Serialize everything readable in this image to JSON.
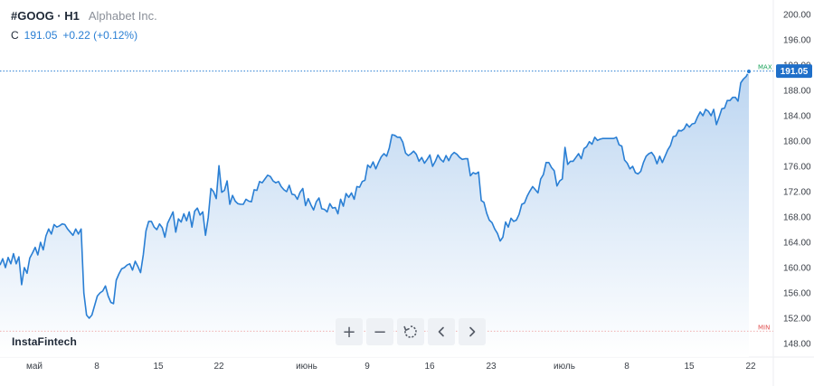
{
  "header": {
    "symbol": "#GOOG · H1",
    "company": "Alphabet Inc.",
    "price_label": "C",
    "price_value": "191.05",
    "price_change": "+0.22 (+0.12%)"
  },
  "watermark": "InstaFintech",
  "toolbar": {
    "zoom_in": "+",
    "zoom_out": "−",
    "reset_icon": "reset-icon",
    "back_icon": "chevron-left-icon",
    "forward_icon": "chevron-right-icon"
  },
  "colors": {
    "line": "#2a7fd4",
    "fill_top": "#b8d3f0",
    "max_marker": "#1aa35a",
    "min_marker": "#e05050",
    "price_tag": "#1f6fc9"
  },
  "markers": {
    "max_label": "MAX",
    "min_label": "MIN",
    "last_price": "191.05"
  },
  "chart_data": {
    "type": "area",
    "title": "#GOOG · H1",
    "y_ticks": [
      "200.00",
      "196.00",
      "192.00",
      "188.00",
      "184.00",
      "180.00",
      "176.00",
      "172.00",
      "168.00",
      "164.00",
      "160.00",
      "156.00",
      "152.00",
      "148.00"
    ],
    "ylim": [
      146.2,
      201.4
    ],
    "x_ticks": [
      "май",
      "8",
      "15",
      "22",
      "июнь",
      "9",
      "16",
      "23",
      "июль",
      "8",
      "15",
      "22"
    ],
    "max_value": 191.05,
    "min_value": 149.95,
    "series": [
      {
        "values": [
          160.4,
          161.4,
          160.0,
          161.6,
          160.6,
          162.2,
          160.6,
          161.7,
          157.3,
          160.0,
          159.1,
          161.5,
          162.3,
          163.2,
          162.0,
          164.0,
          162.8,
          165.0,
          166.1,
          165.3,
          166.8,
          166.4,
          166.6,
          166.9,
          166.8,
          166.1,
          165.6,
          165.1,
          166.1,
          165.3,
          166.1,
          156.0,
          152.5,
          152.0,
          152.5,
          154.0,
          155.5,
          156.0,
          156.3,
          157.1,
          155.5,
          154.5,
          154.3,
          158.0,
          159.0,
          159.8,
          160.0,
          160.4,
          160.6,
          159.6,
          161.0,
          160.2,
          159.2,
          162.0,
          165.8,
          167.3,
          167.3,
          166.4,
          166.0,
          166.9,
          166.3,
          164.8,
          167.0,
          167.9,
          168.8,
          165.6,
          167.7,
          167.2,
          168.5,
          167.4,
          168.8,
          166.4,
          168.9,
          169.4,
          168.3,
          168.8,
          165.1,
          167.9,
          172.5,
          172.0,
          170.9,
          176.1,
          171.9,
          172.2,
          173.7,
          170.0,
          171.4,
          170.5,
          170.1,
          170.0,
          170.0,
          170.8,
          170.5,
          170.4,
          172.3,
          172.2,
          173.6,
          173.4,
          174.0,
          174.6,
          174.4,
          173.7,
          173.4,
          173.6,
          172.8,
          172.3,
          172.0,
          173.0,
          171.6,
          171.5,
          170.8,
          171.9,
          172.5,
          169.8,
          170.9,
          169.9,
          169.1,
          170.4,
          171.0,
          169.3,
          169.2,
          168.8,
          170.1,
          169.4,
          169.5,
          168.5,
          170.8,
          169.7,
          171.7,
          171.1,
          171.8,
          170.8,
          172.8,
          172.7,
          173.6,
          173.8,
          176.2,
          175.8,
          176.7,
          175.6,
          176.6,
          177.5,
          178.0,
          177.6,
          178.9,
          181.0,
          180.9,
          180.6,
          180.6,
          179.8,
          178.1,
          177.7,
          178.0,
          178.4,
          177.9,
          176.8,
          177.4,
          176.5,
          177.1,
          177.8,
          176.0,
          176.8,
          177.8,
          177.1,
          176.7,
          177.7,
          176.9,
          177.8,
          178.2,
          177.9,
          177.4,
          177.1,
          177.2,
          177.2,
          174.5,
          175.0,
          174.8,
          175.1,
          170.6,
          170.3,
          168.6,
          167.5,
          167.1,
          166.1,
          165.4,
          164.2,
          164.8,
          167.2,
          166.4,
          167.8,
          167.3,
          167.5,
          168.4,
          170.0,
          170.2,
          171.3,
          172.1,
          172.8,
          172.3,
          171.8,
          174.0,
          174.7,
          176.6,
          176.6,
          175.8,
          175.3,
          172.9,
          173.7,
          174.0,
          179.0,
          176.3,
          176.8,
          176.8,
          177.4,
          178.0,
          177.2,
          178.8,
          179.1,
          179.9,
          179.5,
          180.6,
          180.1,
          180.3,
          180.4,
          180.4,
          180.4,
          180.4,
          180.4,
          180.6,
          179.4,
          179.2,
          177.0,
          176.5,
          175.6,
          176.0,
          175.0,
          174.8,
          175.2,
          176.6,
          177.6,
          178.0,
          178.2,
          177.6,
          176.4,
          177.6,
          176.6,
          177.6,
          178.6,
          179.3,
          180.7,
          180.8,
          181.7,
          181.6,
          181.9,
          182.7,
          182.2,
          182.7,
          182.8,
          183.8,
          184.6,
          184.0,
          185.0,
          184.7,
          184.0,
          185.0,
          182.6,
          183.8,
          185.1,
          185.2,
          186.4,
          186.4,
          186.9,
          186.9,
          186.3,
          189.2,
          189.8,
          190.2,
          191.0
        ]
      }
    ]
  }
}
